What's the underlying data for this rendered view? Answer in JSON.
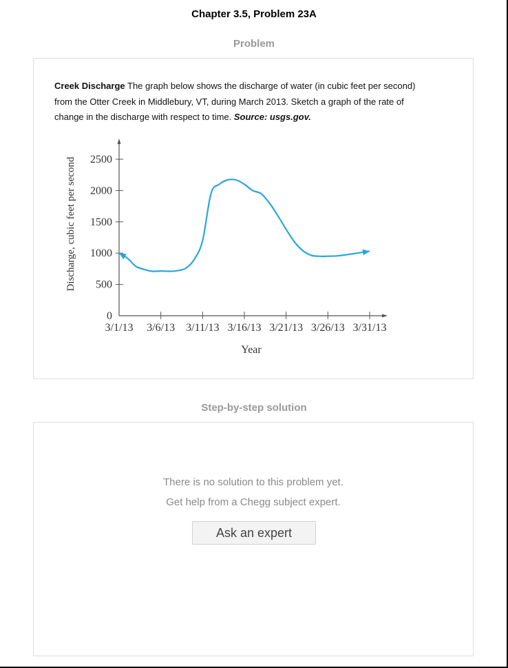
{
  "header": {
    "title": "Chapter 3.5, Problem 23A"
  },
  "problem": {
    "section_title": "Problem",
    "heading": "Creek Discharge",
    "body_line1": " The graph below shows the discharge of water (in cubic feet per second)",
    "body_line2": "from the Otter Creek in Middlebury, VT, during March 2013. Sketch a graph of the rate of",
    "body_line3": "change in the discharge with respect to time. ",
    "source": "Source: usgs.gov."
  },
  "chart_data": {
    "type": "line",
    "xlabel": "Year",
    "ylabel": "Discharge, cubic feet per second",
    "x_ticks": [
      "3/1/13",
      "3/6/13",
      "3/11/13",
      "3/16/13",
      "3/21/13",
      "3/26/13",
      "3/31/13"
    ],
    "y_ticks": [
      "0",
      "500",
      "1000",
      "1500",
      "2000",
      "2500"
    ],
    "ylim": [
      0,
      2500
    ],
    "line_color": "#29a5dc",
    "series": [
      {
        "x": [
          "3/1/13",
          "3/2/13",
          "3/3/13",
          "3/4/13",
          "3/5/13",
          "3/6/13",
          "3/7/13",
          "3/8/13",
          "3/9/13",
          "3/10/13",
          "3/11/13",
          "3/12/13",
          "3/13/13",
          "3/14/13",
          "3/15/13",
          "3/16/13",
          "3/17/13",
          "3/18/13",
          "3/19/13",
          "3/20/13",
          "3/21/13",
          "3/22/13",
          "3/23/13",
          "3/24/13",
          "3/25/13",
          "3/26/13",
          "3/27/13",
          "3/28/13",
          "3/29/13",
          "3/30/13",
          "3/31/13"
        ],
        "values": [
          1000,
          920,
          790,
          740,
          710,
          715,
          710,
          720,
          760,
          900,
          1200,
          1950,
          2100,
          2170,
          2170,
          2100,
          2000,
          1950,
          1800,
          1600,
          1380,
          1180,
          1040,
          965,
          950,
          950,
          955,
          970,
          990,
          1010,
          1030
        ]
      }
    ]
  },
  "solution": {
    "section_title": "Step-by-step solution",
    "message_line1": "There is no solution to this problem yet.",
    "message_line2": "Get help from a Chegg subject expert.",
    "button_label": "Ask an expert"
  }
}
